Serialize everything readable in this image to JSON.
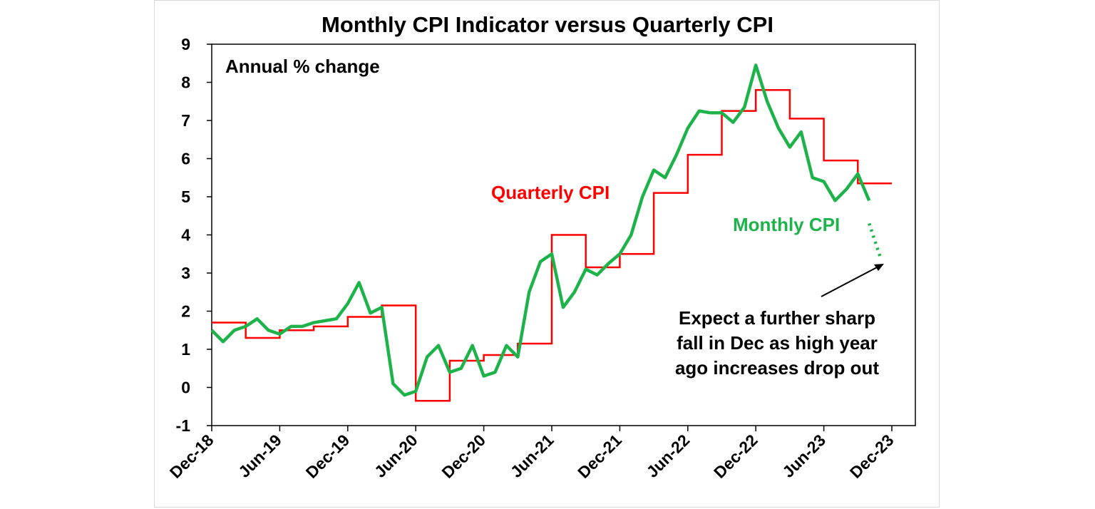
{
  "chart_data": {
    "type": "line",
    "title": "Monthly CPI Indicator versus Quarterly CPI",
    "ylabel": "Annual % change",
    "ylim": [
      -1,
      9
    ],
    "yticks": [
      -1,
      0,
      1,
      2,
      3,
      4,
      5,
      6,
      7,
      8,
      9
    ],
    "xticks": [
      "Dec-18",
      "Jun-19",
      "Dec-19",
      "Jun-20",
      "Dec-20",
      "Jun-21",
      "Dec-21",
      "Jun-22",
      "Dec-22",
      "Jun-23",
      "Dec-23"
    ],
    "x_range": [
      "Dec-18",
      "Dec-23"
    ],
    "grid": false,
    "colors": {
      "quarterly": "#ff0000",
      "monthly": "#1db34a"
    },
    "series": [
      {
        "name": "Quarterly CPI",
        "step": true,
        "x": [
          "Dec-18",
          "Mar-19",
          "Jun-19",
          "Sep-19",
          "Dec-19",
          "Mar-20",
          "Jun-20",
          "Sep-20",
          "Dec-20",
          "Mar-21",
          "Jun-21",
          "Sep-21",
          "Dec-21",
          "Mar-22",
          "Jun-22",
          "Sep-22",
          "Dec-22",
          "Mar-23",
          "Jun-23",
          "Sep-23"
        ],
        "values": [
          1.7,
          1.3,
          1.5,
          1.6,
          1.85,
          2.15,
          -0.35,
          0.7,
          0.85,
          1.15,
          4.0,
          3.15,
          3.5,
          5.1,
          6.1,
          7.25,
          7.8,
          7.05,
          5.95,
          5.35
        ]
      },
      {
        "name": "Monthly CPI",
        "x": [
          "Dec-18",
          "Jan-19",
          "Feb-19",
          "Mar-19",
          "Apr-19",
          "May-19",
          "Jun-19",
          "Jul-19",
          "Aug-19",
          "Sep-19",
          "Oct-19",
          "Nov-19",
          "Dec-19",
          "Jan-20",
          "Feb-20",
          "Mar-20",
          "Apr-20",
          "May-20",
          "Jun-20",
          "Jul-20",
          "Aug-20",
          "Sep-20",
          "Oct-20",
          "Nov-20",
          "Dec-20",
          "Jan-21",
          "Feb-21",
          "Mar-21",
          "Apr-21",
          "May-21",
          "Jun-21",
          "Jul-21",
          "Aug-21",
          "Sep-21",
          "Oct-21",
          "Nov-21",
          "Dec-21",
          "Jan-22",
          "Feb-22",
          "Mar-22",
          "Apr-22",
          "May-22",
          "Jun-22",
          "Jul-22",
          "Aug-22",
          "Sep-22",
          "Oct-22",
          "Nov-22",
          "Dec-22",
          "Jan-23",
          "Feb-23",
          "Mar-23",
          "Apr-23",
          "May-23",
          "Jun-23",
          "Jul-23",
          "Aug-23",
          "Sep-23",
          "Oct-23"
        ],
        "values": [
          1.5,
          1.2,
          1.5,
          1.6,
          1.8,
          1.5,
          1.4,
          1.6,
          1.6,
          1.7,
          1.75,
          1.8,
          2.2,
          2.75,
          1.95,
          2.1,
          0.1,
          -0.2,
          -0.1,
          0.8,
          1.1,
          0.4,
          0.5,
          1.1,
          0.3,
          0.4,
          1.1,
          0.8,
          2.5,
          3.3,
          3.5,
          2.1,
          2.5,
          3.1,
          2.95,
          3.25,
          3.5,
          4.0,
          5.0,
          5.7,
          5.5,
          6.1,
          6.8,
          7.25,
          7.2,
          7.2,
          6.95,
          7.35,
          8.45,
          7.5,
          6.8,
          6.3,
          6.7,
          5.5,
          5.4,
          4.9,
          5.2,
          5.6,
          4.9
        ]
      },
      {
        "name": "",
        "style": "dotted",
        "x": [
          "Oct-23",
          "Nov-23"
        ],
        "values": [
          4.3,
          3.4
        ]
      }
    ],
    "annotations": {
      "quarterly_label": "Quarterly CPI",
      "monthly_label": "Monthly CPI",
      "note": [
        "Expect a further sharp",
        "fall in Dec as high year",
        "ago increases drop out"
      ]
    }
  }
}
